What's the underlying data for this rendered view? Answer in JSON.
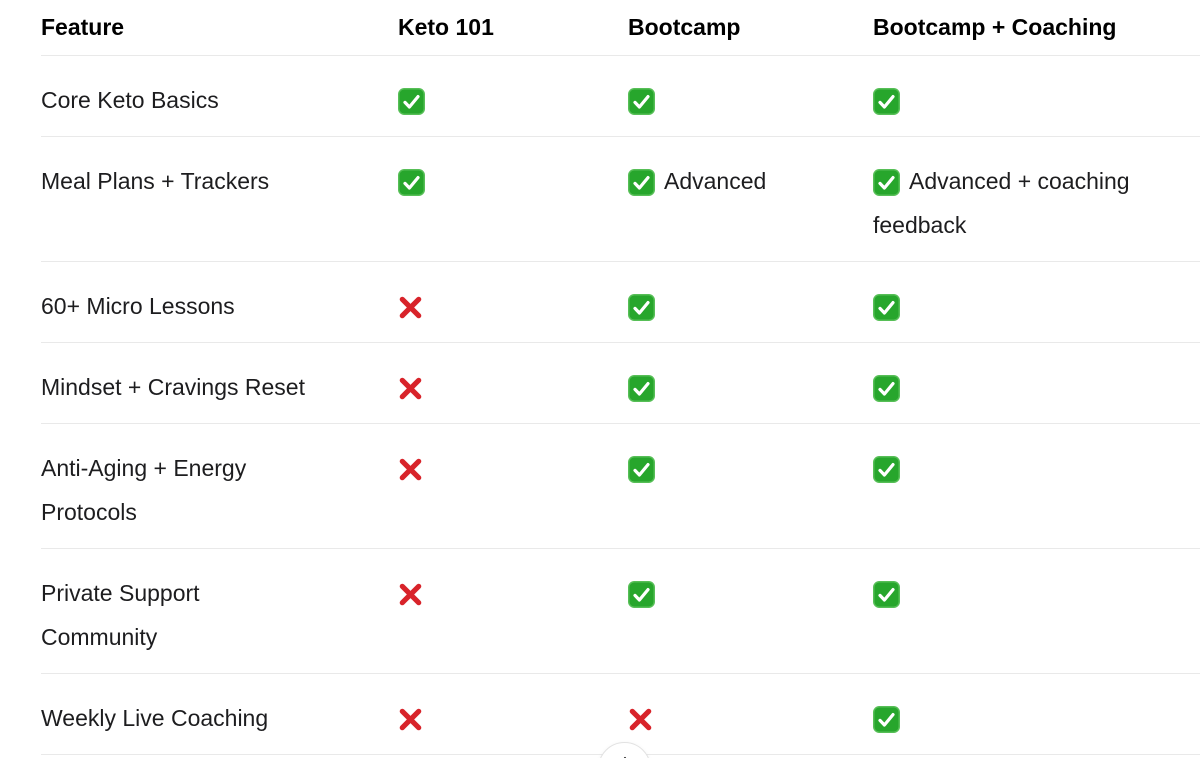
{
  "table": {
    "columns": [
      "Feature",
      "Keto 101",
      "Bootcamp",
      "Bootcamp + Coaching"
    ],
    "rows": [
      {
        "feature": "Core Keto Basics",
        "cells": [
          {
            "mark": "check",
            "text": ""
          },
          {
            "mark": "check",
            "text": ""
          },
          {
            "mark": "check",
            "text": ""
          }
        ]
      },
      {
        "feature": "Meal Plans + Trackers",
        "cells": [
          {
            "mark": "check",
            "text": ""
          },
          {
            "mark": "check",
            "text": "Advanced"
          },
          {
            "mark": "check",
            "text": "Advanced + coaching\nfeedback"
          }
        ]
      },
      {
        "feature": "60+ Micro Lessons",
        "cells": [
          {
            "mark": "cross",
            "text": ""
          },
          {
            "mark": "check",
            "text": ""
          },
          {
            "mark": "check",
            "text": ""
          }
        ]
      },
      {
        "feature": "Mindset + Cravings Reset",
        "cells": [
          {
            "mark": "cross",
            "text": ""
          },
          {
            "mark": "check",
            "text": ""
          },
          {
            "mark": "check",
            "text": ""
          }
        ]
      },
      {
        "feature": "Anti-Aging + Energy\nProtocols",
        "cells": [
          {
            "mark": "cross",
            "text": ""
          },
          {
            "mark": "check",
            "text": ""
          },
          {
            "mark": "check",
            "text": ""
          }
        ]
      },
      {
        "feature": "Private Support\nCommunity",
        "cells": [
          {
            "mark": "cross",
            "text": ""
          },
          {
            "mark": "check",
            "text": ""
          },
          {
            "mark": "check",
            "text": ""
          }
        ]
      },
      {
        "feature": "Weekly Live Coaching",
        "cells": [
          {
            "mark": "cross",
            "text": ""
          },
          {
            "mark": "cross",
            "text": ""
          },
          {
            "mark": "check",
            "text": ""
          }
        ]
      }
    ]
  },
  "icons": {
    "check": "check-icon",
    "cross": "cross-icon",
    "scroll_button": "arrow-down-icon"
  },
  "colors": {
    "background": "#ffffff",
    "text": "#1d1d1f",
    "header_text": "#000000",
    "divider": "#e9e9e9",
    "check_green": "#27a62c",
    "check_green_light": "#57bf57",
    "check_mark_white": "#ffffff",
    "cross_red": "#d8232a",
    "button_border": "#e2e2e2",
    "button_icon": "#3c3c3c"
  }
}
